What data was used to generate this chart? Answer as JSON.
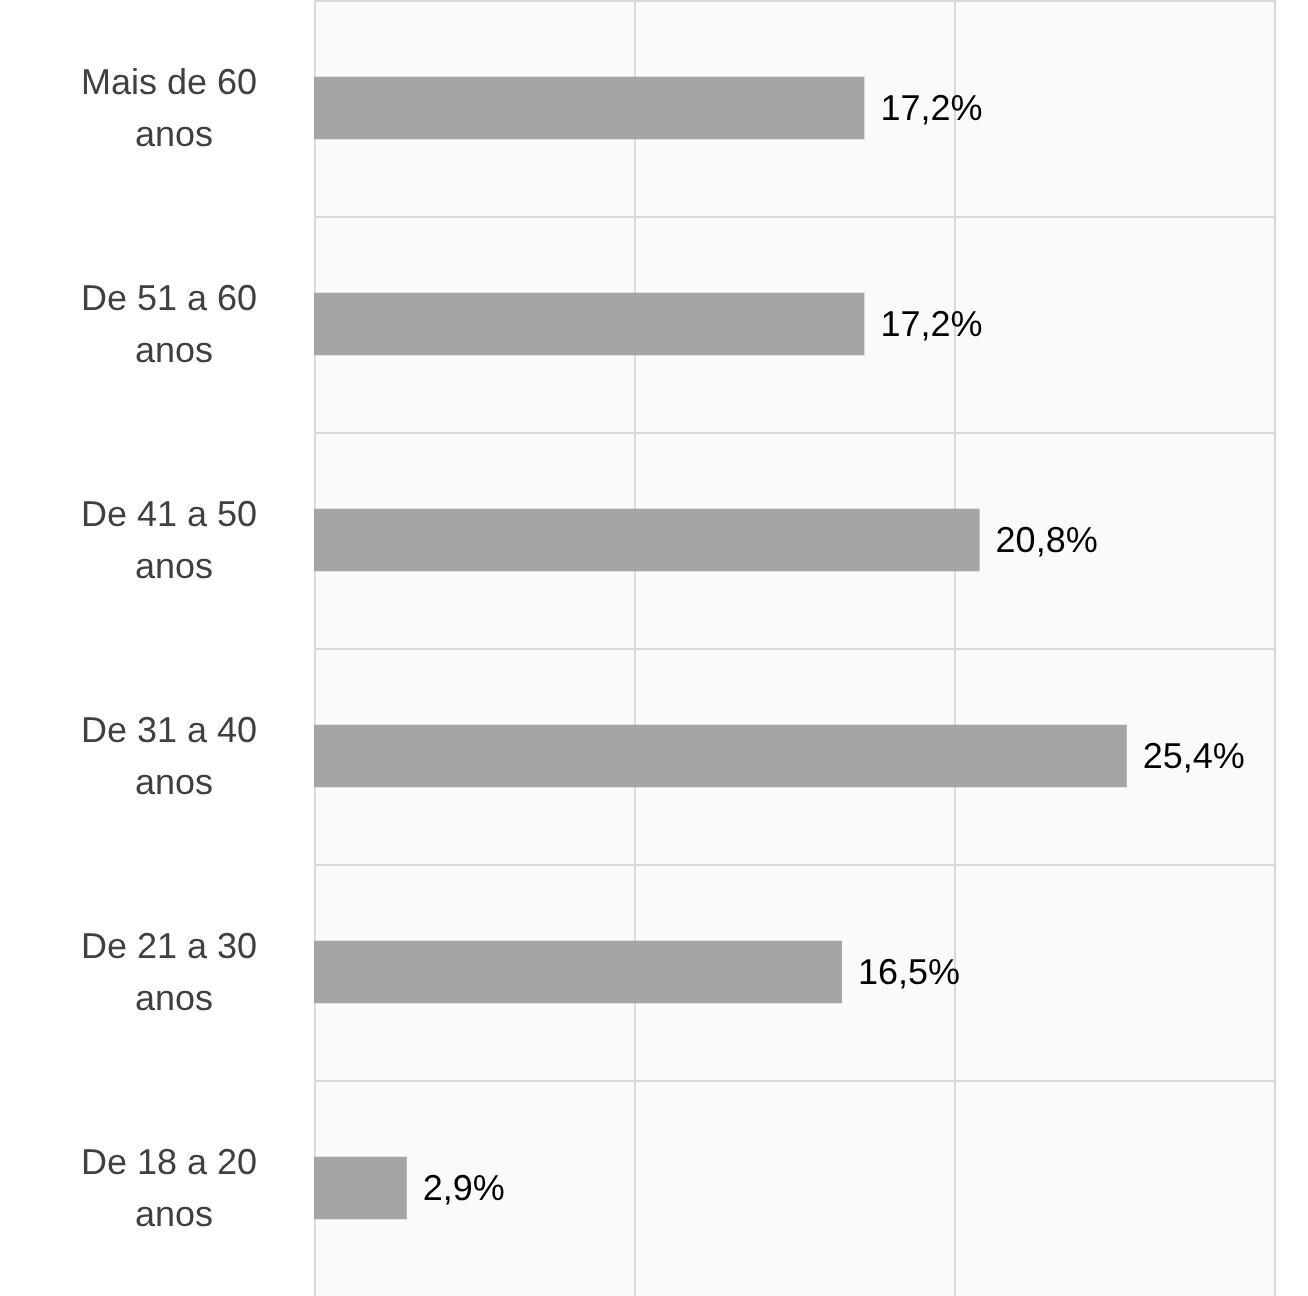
{
  "chart_data": {
    "type": "bar",
    "orientation": "horizontal",
    "categories": [
      "Mais de 60 anos",
      "De 51 a 60 anos",
      "De 41 a 50 anos",
      "De 31 a 40 anos",
      "De 21 a 30 anos",
      "De 18 a 20 anos"
    ],
    "values": [
      17.2,
      17.2,
      20.8,
      25.4,
      16.5,
      2.9
    ],
    "value_labels": [
      "17,2%",
      "17,2%",
      "20,8%",
      "25,4%",
      "16,5%",
      "2,9%"
    ],
    "color": "#a5a5a5",
    "xlim": [
      0,
      30
    ],
    "xticks": [
      {
        "value": 0,
        "label": null
      },
      {
        "value": 10,
        "label": null
      },
      {
        "value": 20,
        "label": null
      },
      {
        "value": 30,
        "label": null
      }
    ],
    "tick_labels": "y",
    "grid": true
  }
}
